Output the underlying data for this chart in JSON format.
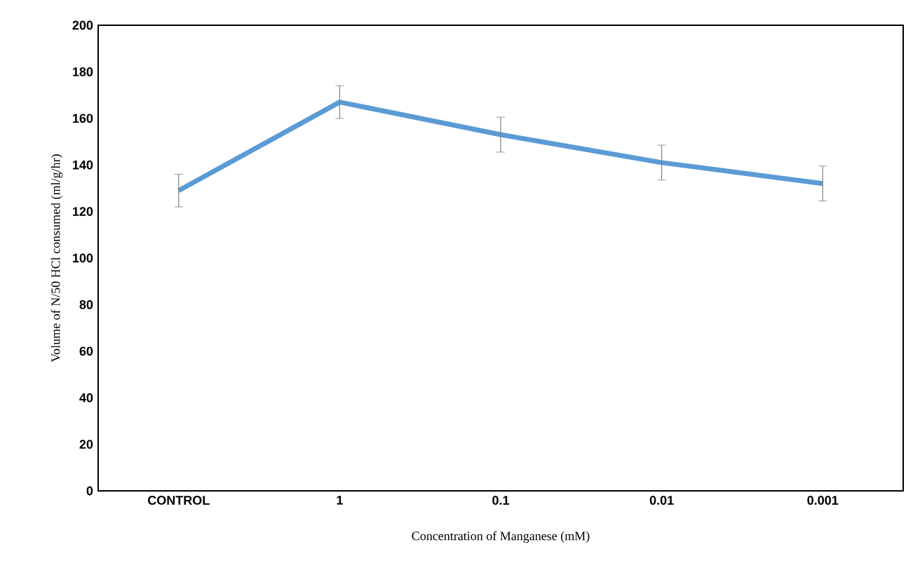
{
  "chart_data": {
    "type": "line",
    "xlabel": "Concentration of Manganese (mM)",
    "ylabel": "Volume of N/50 HCl consumed (ml/g/hr)",
    "categories": [
      "CONTROL",
      "1",
      "0.1",
      "0.01",
      "0.001"
    ],
    "series": [
      {
        "color": "#5b9bd5",
        "values": [
          129,
          167,
          153,
          141,
          132
        ],
        "errors": [
          7,
          7,
          7.5,
          7.5,
          7.5
        ]
      }
    ],
    "ylim": [
      0,
      200
    ],
    "yticks": [
      0,
      20,
      40,
      60,
      80,
      100,
      120,
      140,
      160,
      180,
      200
    ],
    "grid": false,
    "marker": "none",
    "line_style": "solid"
  }
}
